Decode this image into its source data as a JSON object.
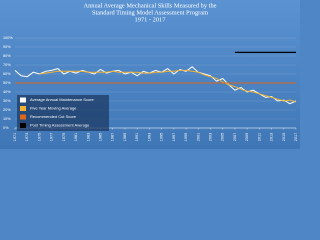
{
  "chart_data": {
    "type": "line",
    "title": [
      "Annual Average Mechanical Skills Measured by the",
      "Standard Timing Model Assessment Program",
      "1971 - 2017"
    ],
    "x": [
      1971,
      1972,
      1973,
      1974,
      1975,
      1976,
      1977,
      1978,
      1979,
      1980,
      1981,
      1982,
      1983,
      1984,
      1985,
      1986,
      1987,
      1988,
      1989,
      1990,
      1991,
      1992,
      1993,
      1994,
      1995,
      1996,
      1997,
      1998,
      1999,
      2000,
      2001,
      2002,
      2003,
      2004,
      2005,
      2006,
      2007,
      2008,
      2009,
      2010,
      2011,
      2012,
      2013,
      2014,
      2015,
      2016,
      2017
    ],
    "series": [
      {
        "name": "Average Annual Maintenance Score",
        "color": "#ffffff",
        "values": [
          64,
          58,
          57,
          62,
          60,
          63,
          64,
          66,
          60,
          63,
          61,
          64,
          62,
          60,
          65,
          61,
          63,
          64,
          60,
          62,
          58,
          63,
          61,
          64,
          62,
          66,
          60,
          65,
          63,
          68,
          62,
          60,
          58,
          52,
          55,
          48,
          42,
          45,
          40,
          42,
          38,
          34,
          35,
          30,
          31,
          27,
          30
        ]
      },
      {
        "name": "Five Year Moving Average",
        "color": "#f2b233",
        "values": [
          null,
          null,
          null,
          null,
          60,
          61,
          62,
          63,
          63,
          63,
          63,
          63,
          62,
          62,
          62,
          62,
          63,
          62,
          62,
          62,
          62,
          61,
          61,
          62,
          62,
          63,
          63,
          64,
          64,
          63,
          62,
          59,
          57,
          55,
          51,
          48,
          46,
          43,
          41,
          40,
          38,
          36,
          34,
          32,
          30,
          31,
          29
        ]
      },
      {
        "name": "Recommended Cut Score",
        "color": "#e0661a",
        "values": [
          50,
          50,
          50,
          50,
          50,
          50,
          50,
          50,
          50,
          50,
          50,
          50,
          50,
          50,
          50,
          50,
          50,
          50,
          50,
          50,
          50,
          50,
          50,
          50,
          50,
          50,
          50,
          50,
          50,
          50,
          50,
          50,
          50,
          50,
          50,
          50,
          50,
          50,
          50,
          50,
          50,
          50,
          50,
          50,
          50,
          50,
          50
        ]
      },
      {
        "name": "Post Timing Assessment Average",
        "color": "#000000",
        "values": [
          null,
          null,
          null,
          null,
          null,
          null,
          null,
          null,
          null,
          null,
          null,
          null,
          null,
          null,
          null,
          null,
          null,
          null,
          null,
          null,
          null,
          null,
          null,
          null,
          null,
          null,
          null,
          null,
          null,
          null,
          null,
          null,
          null,
          null,
          null,
          null,
          84,
          84,
          84,
          84,
          84,
          84,
          84,
          84,
          84,
          84,
          84
        ]
      }
    ],
    "xlim": [
      1971,
      2017
    ],
    "xticks": [
      1971,
      1973,
      1975,
      1977,
      1979,
      1981,
      1983,
      1985,
      1987,
      1989,
      1991,
      1993,
      1995,
      1997,
      1999,
      2001,
      2003,
      2005,
      2007,
      2009,
      2011,
      2013,
      2015,
      2017
    ],
    "ylim": [
      0,
      100
    ],
    "yticks": [
      {
        "value": 0,
        "label": "0%"
      },
      {
        "value": 10,
        "label": "10%"
      },
      {
        "value": 20,
        "label": "20%"
      },
      {
        "value": 30,
        "label": "30%"
      },
      {
        "value": 40,
        "label": "40%"
      },
      {
        "value": 50,
        "label": "50%"
      },
      {
        "value": 60,
        "label": "60%"
      },
      {
        "value": 70,
        "label": "70%"
      },
      {
        "value": 80,
        "label": "80%"
      },
      {
        "value": 90,
        "label": "90%"
      },
      {
        "value": 100,
        "label": "100%"
      }
    ],
    "grid": true
  }
}
